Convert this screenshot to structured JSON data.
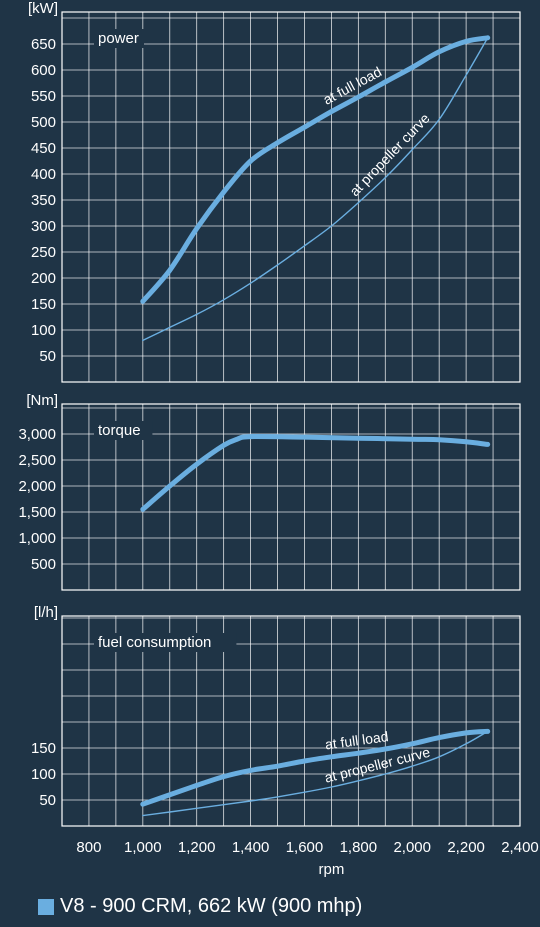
{
  "chart_data": {
    "type": "line",
    "xlabel": "rpm",
    "x_ticks": [
      "800",
      "1,000",
      "1,200",
      "1,400",
      "1,600",
      "1,800",
      "2,000",
      "2,200",
      "2,400"
    ],
    "xlim": [
      700,
      2400
    ],
    "legend": {
      "label": "V8 - 900 CRM, 662 kW (900 mhp)",
      "color": "#6aaee0"
    },
    "panels": [
      {
        "id": "power",
        "title": "power",
        "unit": "[kW]",
        "ylim": [
          0,
          700
        ],
        "y_ticks": [
          "50",
          "100",
          "150",
          "200",
          "250",
          "300",
          "350",
          "400",
          "450",
          "500",
          "550",
          "600",
          "650"
        ],
        "y_tick_values": [
          50,
          100,
          150,
          200,
          250,
          300,
          350,
          400,
          450,
          500,
          550,
          600,
          650
        ],
        "series": [
          {
            "name": "at full load",
            "weight": "thick",
            "x": [
              1000,
              1100,
              1200,
              1300,
              1400,
              1500,
              1600,
              1700,
              1800,
              1900,
              2000,
              2100,
              2200,
              2280
            ],
            "y": [
              155,
              215,
              295,
              365,
              425,
              460,
              490,
              520,
              548,
              577,
              605,
              635,
              655,
              662
            ]
          },
          {
            "name": "at propeller curve",
            "weight": "thin",
            "x": [
              1000,
              1100,
              1200,
              1300,
              1400,
              1500,
              1600,
              1700,
              1800,
              1900,
              2000,
              2100,
              2200,
              2280
            ],
            "y": [
              80,
              105,
              130,
              158,
              190,
              225,
              262,
              300,
              345,
              393,
              447,
              505,
              590,
              662
            ]
          }
        ]
      },
      {
        "id": "torque",
        "title": "torque",
        "unit": "[Nm]",
        "ylim": [
          0,
          3300
        ],
        "y_ticks": [
          "500",
          "1,000",
          "1,500",
          "2,000",
          "2,500",
          "3,000"
        ],
        "y_tick_values": [
          500,
          1000,
          1500,
          2000,
          2500,
          3000
        ],
        "series": [
          {
            "name": "",
            "weight": "thick",
            "x": [
              1000,
              1100,
              1200,
              1300,
              1350,
              1400,
              1600,
              1800,
              2000,
              2100,
              2200,
              2280
            ],
            "y": [
              1550,
              2000,
              2420,
              2780,
              2900,
              2950,
              2940,
              2920,
              2900,
              2890,
              2850,
              2800
            ]
          }
        ]
      },
      {
        "id": "fuel",
        "title": "fuel consumption",
        "unit": "[l/h]",
        "ylim": [
          0,
          200
        ],
        "y_ticks": [
          "50",
          "100",
          "150"
        ],
        "y_tick_values": [
          50,
          100,
          150
        ],
        "series": [
          {
            "name": "at full load",
            "weight": "thick",
            "x": [
              1000,
              1100,
              1200,
              1300,
              1400,
              1500,
              1600,
              1700,
              1800,
              1900,
              2000,
              2100,
              2200,
              2280
            ],
            "y": [
              42,
              60,
              78,
              95,
              107,
              115,
              125,
              133,
              140,
              148,
              158,
              170,
              179,
              182
            ]
          },
          {
            "name": "at propeller curve",
            "weight": "thin",
            "x": [
              1000,
              1100,
              1200,
              1300,
              1400,
              1500,
              1600,
              1700,
              1800,
              1900,
              2000,
              2100,
              2200,
              2280
            ],
            "y": [
              20,
              27,
              34,
              41,
              48,
              56,
              65,
              75,
              87,
              100,
              115,
              133,
              158,
              182
            ]
          }
        ]
      }
    ]
  },
  "colors": {
    "background": "#1f3446",
    "grid": "#ffffff",
    "curve": "#6aaee0",
    "text": "#ffffff"
  }
}
